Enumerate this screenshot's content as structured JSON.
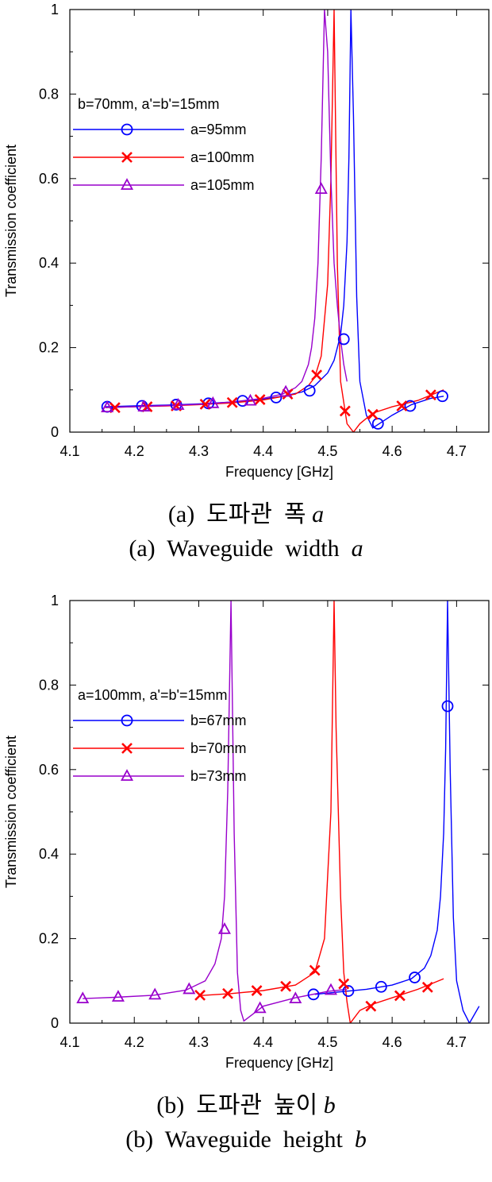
{
  "chart_data": [
    {
      "type": "line",
      "xlabel": "Frequency [GHz]",
      "ylabel": "Transmission coefficient",
      "xlim": [
        4.1,
        4.75
      ],
      "ylim": [
        0,
        1
      ],
      "xticks": [
        "4.1",
        "4.2",
        "4.3",
        "4.4",
        "4.5",
        "4.6",
        "4.7"
      ],
      "yticks": [
        "0",
        "0.2",
        "0.4",
        "0.6",
        "0.8",
        "1"
      ],
      "grid": false,
      "legend_title": "b=70mm, a'=b'=15mm",
      "legend_position": "top-left",
      "series": [
        {
          "name": "a=95mm",
          "color": "#0000ff",
          "marker": "circle",
          "curve_x": [
            4.155,
            4.2,
            4.25,
            4.3,
            4.35,
            4.4,
            4.43,
            4.46,
            4.48,
            4.5,
            4.51,
            4.52,
            4.525,
            4.53,
            4.533,
            4.536,
            4.54,
            4.545,
            4.55,
            4.56,
            4.57,
            4.6,
            4.63,
            4.66,
            4.68
          ],
          "curve_y": [
            0.06,
            0.062,
            0.064,
            0.067,
            0.071,
            0.078,
            0.085,
            0.095,
            0.11,
            0.14,
            0.17,
            0.23,
            0.3,
            0.45,
            0.65,
            1.0,
            0.75,
            0.32,
            0.12,
            0.04,
            0.01,
            0.04,
            0.065,
            0.08,
            0.085
          ],
          "marker_x": [
            4.158,
            4.212,
            4.265,
            4.315,
            4.368,
            4.42,
            4.472,
            4.525,
            4.578,
            4.628,
            4.678
          ],
          "marker_y": [
            0.06,
            0.062,
            0.065,
            0.068,
            0.074,
            0.082,
            0.098,
            0.22,
            0.02,
            0.062,
            0.085
          ]
        },
        {
          "name": "a=100mm",
          "color": "#ff0000",
          "marker": "x",
          "curve_x": [
            4.155,
            4.2,
            4.25,
            4.3,
            4.35,
            4.4,
            4.45,
            4.47,
            4.48,
            4.49,
            4.5,
            4.505,
            4.51,
            4.515,
            4.52,
            4.53,
            4.54,
            4.55,
            4.57,
            4.6,
            4.64,
            4.68
          ],
          "curve_y": [
            0.058,
            0.06,
            0.062,
            0.065,
            0.069,
            0.076,
            0.09,
            0.11,
            0.13,
            0.18,
            0.35,
            0.6,
            1.0,
            0.4,
            0.12,
            0.02,
            0.0,
            0.02,
            0.045,
            0.06,
            0.075,
            0.1
          ],
          "marker_x": [
            4.17,
            4.22,
            4.265,
            4.31,
            4.352,
            4.395,
            4.438,
            4.483,
            4.527,
            4.57,
            4.615,
            4.66
          ],
          "marker_y": [
            0.058,
            0.06,
            0.062,
            0.066,
            0.07,
            0.077,
            0.09,
            0.135,
            0.05,
            0.042,
            0.062,
            0.088
          ]
        },
        {
          "name": "a=105mm",
          "color": "#9900cc",
          "marker": "triangle",
          "curve_x": [
            4.155,
            4.2,
            4.25,
            4.3,
            4.35,
            4.4,
            4.43,
            4.45,
            4.46,
            4.47,
            4.475,
            4.48,
            4.485,
            4.49,
            4.495,
            4.5,
            4.505,
            4.51,
            4.515,
            4.52,
            4.525,
            4.53
          ],
          "curve_y": [
            0.058,
            0.06,
            0.063,
            0.066,
            0.071,
            0.08,
            0.09,
            0.105,
            0.12,
            0.16,
            0.2,
            0.27,
            0.4,
            0.65,
            1.0,
            0.9,
            0.6,
            0.4,
            0.3,
            0.22,
            0.16,
            0.12
          ],
          "marker_x": [
            4.158,
            4.215,
            4.268,
            4.322,
            4.38,
            4.435,
            4.49
          ],
          "marker_y": [
            0.058,
            0.06,
            0.064,
            0.068,
            0.074,
            0.095,
            0.575
          ]
        }
      ]
    },
    {
      "type": "line",
      "xlabel": "Frequency [GHz]",
      "ylabel": "Transmission coefficient",
      "xlim": [
        4.1,
        4.75
      ],
      "ylim": [
        0,
        1
      ],
      "xticks": [
        "4.1",
        "4.2",
        "4.3",
        "4.4",
        "4.5",
        "4.6",
        "4.7"
      ],
      "yticks": [
        "0",
        "0.2",
        "0.4",
        "0.6",
        "0.8",
        "1"
      ],
      "grid": false,
      "legend_title": "a=100mm, a'=b'=15mm",
      "legend_position": "top-left",
      "series": [
        {
          "name": "b=67mm",
          "color": "#0000ff",
          "marker": "circle",
          "curve_x": [
            4.48,
            4.52,
            4.56,
            4.6,
            4.63,
            4.65,
            4.66,
            4.67,
            4.675,
            4.68,
            4.683,
            4.686,
            4.69,
            4.695,
            4.7,
            4.71,
            4.72,
            4.735
          ],
          "curve_y": [
            0.068,
            0.074,
            0.08,
            0.09,
            0.105,
            0.13,
            0.16,
            0.22,
            0.3,
            0.45,
            0.65,
            1.0,
            0.6,
            0.25,
            0.1,
            0.03,
            0.0,
            0.04
          ],
          "marker_x": [
            4.478,
            4.532,
            4.583,
            4.635,
            4.686
          ],
          "marker_y": [
            0.068,
            0.076,
            0.086,
            0.108,
            0.75
          ]
        },
        {
          "name": "b=70mm",
          "color": "#ff0000",
          "marker": "x",
          "curve_x": [
            4.3,
            4.35,
            4.4,
            4.45,
            4.48,
            4.495,
            4.505,
            4.51,
            4.513,
            4.52,
            4.525,
            4.53,
            4.535,
            4.54,
            4.55,
            4.57,
            4.6,
            4.64,
            4.68
          ],
          "curve_y": [
            0.065,
            0.07,
            0.077,
            0.09,
            0.12,
            0.2,
            0.5,
            1.0,
            0.7,
            0.3,
            0.12,
            0.05,
            0.0,
            0.01,
            0.03,
            0.045,
            0.06,
            0.08,
            0.105
          ],
          "marker_x": [
            4.302,
            4.345,
            4.39,
            4.435,
            4.48,
            4.525,
            4.567,
            4.612,
            4.655
          ],
          "marker_y": [
            0.066,
            0.07,
            0.077,
            0.087,
            0.125,
            0.093,
            0.04,
            0.065,
            0.085
          ]
        },
        {
          "name": "b=73mm",
          "color": "#9900cc",
          "marker": "triangle",
          "curve_x": [
            4.12,
            4.17,
            4.23,
            4.28,
            4.31,
            4.325,
            4.335,
            4.34,
            4.345,
            4.35,
            4.355,
            4.36,
            4.365,
            4.37,
            4.4,
            4.45,
            4.5,
            4.53
          ],
          "curve_y": [
            0.058,
            0.061,
            0.066,
            0.078,
            0.1,
            0.14,
            0.2,
            0.3,
            0.55,
            1.0,
            0.45,
            0.12,
            0.03,
            0.005,
            0.04,
            0.06,
            0.075,
            0.08
          ],
          "marker_x": [
            4.12,
            4.175,
            4.232,
            4.285,
            4.34,
            4.395,
            4.45,
            4.505
          ],
          "marker_y": [
            0.058,
            0.062,
            0.067,
            0.08,
            0.222,
            0.035,
            0.058,
            0.078
          ]
        }
      ]
    }
  ],
  "captions": {
    "a_kr_prefix": "(a)  도파관  폭 ",
    "a_kr_var": "a",
    "a_en_prefix": "(a)  Waveguide  width  ",
    "a_en_var": "a",
    "b_kr_prefix": "(b)  도파관  높이 ",
    "b_kr_var": "b",
    "b_en_prefix": "(b)  Waveguide  height  ",
    "b_en_var": "b"
  }
}
